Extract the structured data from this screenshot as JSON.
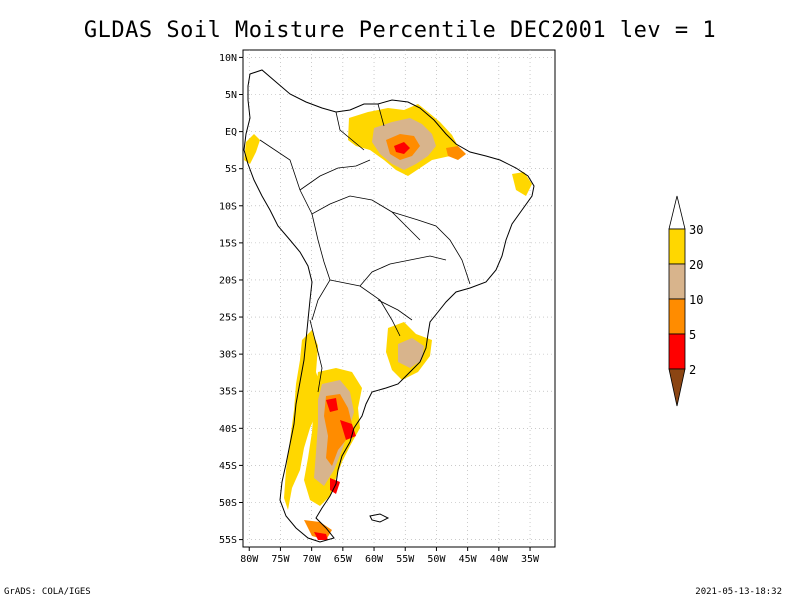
{
  "title": "GLDAS Soil Moisture Percentile DEC2001 lev = 1",
  "footer": {
    "left": "GrADS: COLA/IGES",
    "right": "2021-05-13-18:32"
  },
  "map": {
    "lon_range": [
      -81,
      -31
    ],
    "lat_range": [
      -56,
      11
    ],
    "lat_ticks": [
      {
        "value": 10,
        "label": "10N"
      },
      {
        "value": 5,
        "label": "5N"
      },
      {
        "value": 0,
        "label": "EQ"
      },
      {
        "value": -5,
        "label": "5S"
      },
      {
        "value": -10,
        "label": "10S"
      },
      {
        "value": -15,
        "label": "15S"
      },
      {
        "value": -20,
        "label": "20S"
      },
      {
        "value": -25,
        "label": "25S"
      },
      {
        "value": -30,
        "label": "30S"
      },
      {
        "value": -35,
        "label": "35S"
      },
      {
        "value": -40,
        "label": "40S"
      },
      {
        "value": -45,
        "label": "45S"
      },
      {
        "value": -50,
        "label": "50S"
      },
      {
        "value": -55,
        "label": "55S"
      }
    ],
    "lon_ticks": [
      {
        "value": -80,
        "label": "80W"
      },
      {
        "value": -75,
        "label": "75W"
      },
      {
        "value": -70,
        "label": "70W"
      },
      {
        "value": -65,
        "label": "65W"
      },
      {
        "value": -60,
        "label": "60W"
      },
      {
        "value": -55,
        "label": "55W"
      },
      {
        "value": -50,
        "label": "50W"
      },
      {
        "value": -45,
        "label": "45W"
      },
      {
        "value": -40,
        "label": "40W"
      },
      {
        "value": -35,
        "label": "35W"
      }
    ],
    "grid": true
  },
  "legend": {
    "labels": [
      "30",
      "20",
      "10",
      "5",
      "2"
    ],
    "colors": {
      "above_30": "#ffffff",
      "20_30": "#ffd700",
      "10_20": "#d8b48c",
      "5_10": "#ff8c00",
      "2_5": "#ff0000",
      "below_2": "#8b4513"
    }
  },
  "colors": {
    "coast": "#000000",
    "grid": "#aaaaaa"
  }
}
